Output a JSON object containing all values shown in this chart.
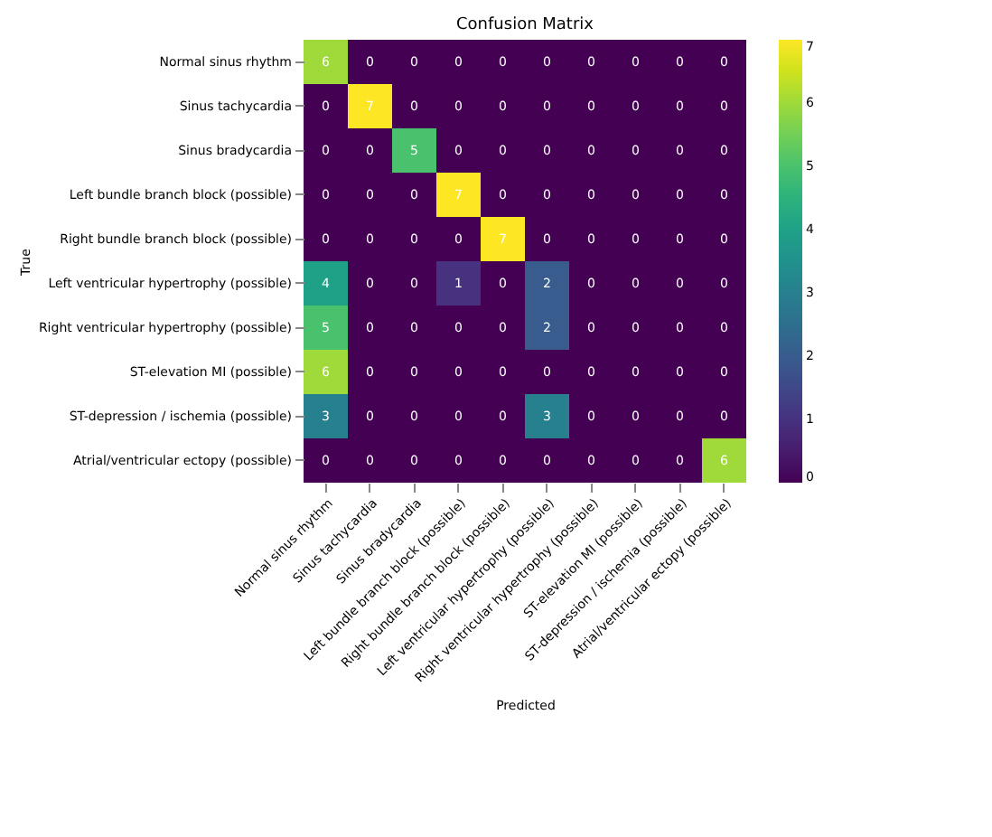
{
  "chart_data": {
    "type": "heatmap",
    "title": "Confusion Matrix",
    "xlabel": "Predicted",
    "ylabel": "True",
    "categories": [
      "Normal sinus rhythm",
      "Sinus tachycardia",
      "Sinus bradycardia",
      "Left bundle branch block (possible)",
      "Right bundle branch block (possible)",
      "Left ventricular hypertrophy (possible)",
      "Right ventricular hypertrophy (possible)",
      "ST-elevation MI (possible)",
      "ST-depression / ischemia (possible)",
      "Atrial/ventricular ectopy (possible)"
    ],
    "y_categories": [
      "Normal sinus rhythm",
      "Sinus tachycardia",
      "Sinus bradycardia",
      "Left bundle branch block (possible)",
      "Right bundle branch block (possible)",
      "Left ventricular hypertrophy (possible)",
      "Right ventricular hypertrophy (possible)",
      "ST-elevation MI (possible)",
      "ST-depression / ischemia (possible)",
      "Atrial/ventricular ectopy (possible)"
    ],
    "cells": [
      [
        6,
        0,
        0,
        0,
        0,
        0,
        0,
        0,
        0,
        0
      ],
      [
        0,
        7,
        0,
        0,
        0,
        0,
        0,
        0,
        0,
        0
      ],
      [
        0,
        0,
        5,
        0,
        0,
        0,
        0,
        0,
        0,
        0
      ],
      [
        0,
        0,
        0,
        7,
        0,
        0,
        0,
        0,
        0,
        0
      ],
      [
        0,
        0,
        0,
        0,
        7,
        0,
        0,
        0,
        0,
        0
      ],
      [
        4,
        0,
        0,
        1,
        0,
        2,
        0,
        0,
        0,
        0
      ],
      [
        5,
        0,
        0,
        0,
        0,
        2,
        0,
        0,
        0,
        0
      ],
      [
        6,
        0,
        0,
        0,
        0,
        0,
        0,
        0,
        0,
        0
      ],
      [
        3,
        0,
        0,
        0,
        0,
        3,
        0,
        0,
        0,
        0
      ],
      [
        0,
        0,
        0,
        0,
        0,
        0,
        0,
        0,
        0,
        6
      ]
    ],
    "clim": [
      0,
      7
    ],
    "cticks": [
      0,
      1,
      2,
      3,
      4,
      5,
      6,
      7
    ],
    "data_labels": true
  }
}
